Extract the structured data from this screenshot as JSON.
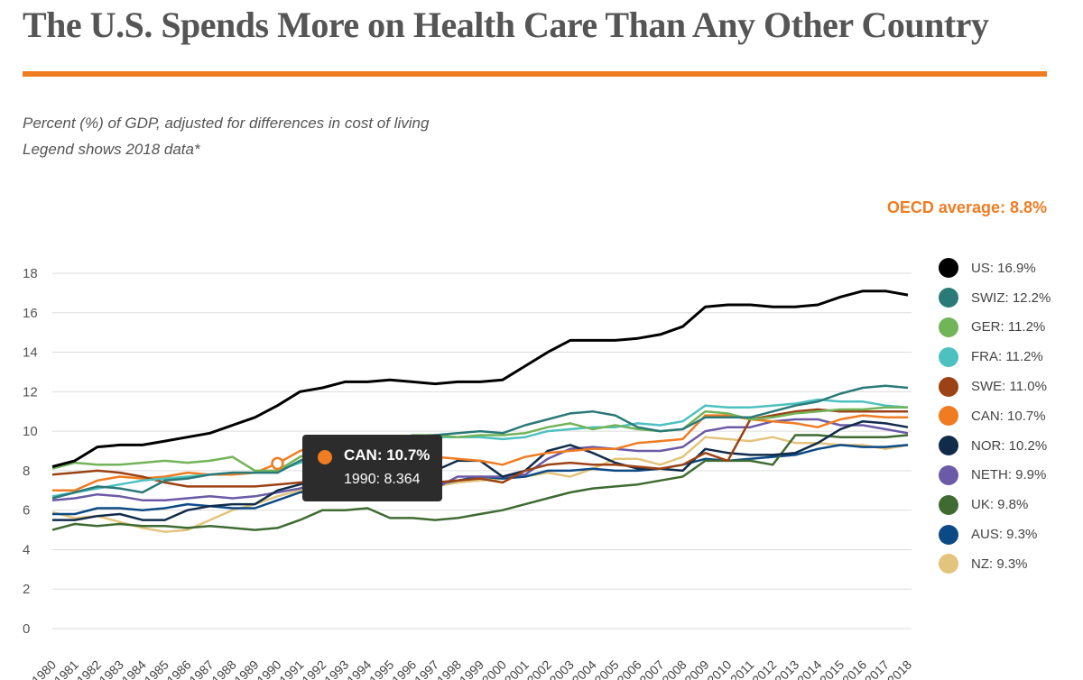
{
  "title": "The U.S. Spends More on Health Care Than Any Other Country",
  "subtitle": "Percent (%) of GDP, adjusted for differences in cost of living",
  "subtitle2": "Legend shows 2018 data*",
  "oecd_label": "OECD average: 8.8%",
  "tooltip": {
    "name": "CAN: 10.7%",
    "value": "1990: 8.364",
    "color": "#f07c22"
  },
  "colors": {
    "accent": "#f07c22",
    "title": "#555555",
    "tooltip_bg": "#2c2c2c"
  },
  "chart_data": {
    "type": "line",
    "ylim": [
      0,
      18
    ],
    "yticks": [
      0,
      2,
      4,
      6,
      8,
      10,
      12,
      14,
      16,
      18
    ],
    "x": [
      1980,
      1981,
      1982,
      1983,
      1984,
      1985,
      1986,
      1987,
      1988,
      1989,
      1990,
      1991,
      1992,
      1993,
      1994,
      1995,
      1996,
      1997,
      1998,
      1999,
      2000,
      2001,
      2002,
      2003,
      2004,
      2005,
      2006,
      2007,
      2008,
      2009,
      2010,
      2011,
      2012,
      2013,
      2014,
      2015,
      2016,
      2017,
      2018
    ],
    "highlight": {
      "series": "CAN",
      "x": 1990,
      "y": 8.364
    },
    "series": [
      {
        "name": "US",
        "legend": "US: 16.9%",
        "color": "#000000",
        "values": [
          8.2,
          8.5,
          9.2,
          9.3,
          9.3,
          9.5,
          9.7,
          9.9,
          10.3,
          10.7,
          11.3,
          12.0,
          12.2,
          12.5,
          12.5,
          12.6,
          12.5,
          12.4,
          12.5,
          12.5,
          12.6,
          13.3,
          14.0,
          14.6,
          14.6,
          14.6,
          14.7,
          14.9,
          15.3,
          16.3,
          16.4,
          16.4,
          16.3,
          16.3,
          16.4,
          16.8,
          17.1,
          17.1,
          16.9
        ]
      },
      {
        "name": "SWIZ",
        "legend": "SWIZ: 12.2%",
        "color": "#2a7a78",
        "values": [
          6.6,
          6.9,
          7.2,
          7.1,
          6.9,
          7.5,
          7.6,
          7.8,
          7.9,
          7.9,
          7.9,
          8.5,
          9.0,
          9.2,
          9.3,
          9.4,
          9.7,
          9.8,
          9.9,
          10.0,
          9.9,
          10.3,
          10.6,
          10.9,
          11.0,
          10.8,
          10.2,
          10.0,
          10.1,
          10.7,
          10.7,
          10.7,
          11.0,
          11.3,
          11.5,
          11.9,
          12.2,
          12.3,
          12.2
        ]
      },
      {
        "name": "GER",
        "legend": "GER: 11.2%",
        "color": "#72b458",
        "values": [
          8.1,
          8.4,
          8.3,
          8.3,
          8.4,
          8.5,
          8.4,
          8.5,
          8.7,
          8.0,
          8.0,
          8.7,
          9.1,
          9.2,
          9.3,
          9.5,
          9.8,
          9.8,
          9.7,
          9.8,
          9.8,
          9.9,
          10.2,
          10.4,
          10.1,
          10.3,
          10.1,
          10.0,
          10.1,
          11.0,
          10.9,
          10.6,
          10.7,
          10.9,
          11.0,
          11.1,
          11.1,
          11.2,
          11.2
        ]
      },
      {
        "name": "FRA",
        "legend": "FRA: 11.2%",
        "color": "#4dc1c0",
        "values": [
          6.7,
          6.9,
          7.1,
          7.3,
          7.5,
          7.6,
          7.7,
          7.8,
          7.9,
          7.9,
          8.0,
          8.4,
          8.7,
          9.1,
          9.3,
          9.5,
          9.6,
          9.7,
          9.7,
          9.7,
          9.6,
          9.7,
          10.0,
          10.1,
          10.2,
          10.2,
          10.4,
          10.3,
          10.5,
          11.3,
          11.2,
          11.2,
          11.3,
          11.4,
          11.6,
          11.5,
          11.5,
          11.3,
          11.2
        ]
      },
      {
        "name": "SWE",
        "legend": "SWE: 11.0%",
        "color": "#9c4214",
        "values": [
          7.8,
          7.9,
          8.0,
          7.9,
          7.7,
          7.4,
          7.2,
          7.2,
          7.2,
          7.2,
          7.3,
          7.4,
          7.5,
          7.6,
          7.4,
          7.4,
          7.6,
          7.4,
          7.5,
          7.6,
          7.4,
          8.0,
          8.3,
          8.4,
          8.3,
          8.3,
          8.2,
          8.1,
          8.3,
          8.9,
          8.5,
          10.6,
          10.8,
          11.0,
          11.1,
          11.0,
          11.0,
          11.0,
          11.0
        ]
      },
      {
        "name": "CAN",
        "legend": "CAN: 10.7%",
        "color": "#f07c22",
        "values": [
          7.0,
          7.0,
          7.5,
          7.7,
          7.6,
          7.7,
          7.9,
          7.8,
          7.8,
          7.9,
          8.364,
          9.0,
          9.4,
          9.3,
          9.1,
          9.0,
          8.8,
          8.7,
          8.6,
          8.5,
          8.3,
          8.7,
          8.9,
          9.0,
          9.1,
          9.1,
          9.4,
          9.5,
          9.6,
          10.8,
          10.8,
          10.6,
          10.5,
          10.4,
          10.2,
          10.6,
          10.8,
          10.7,
          10.7
        ]
      },
      {
        "name": "NOR",
        "legend": "NOR: 10.2%",
        "color": "#102c4a",
        "values": [
          5.5,
          5.5,
          5.7,
          5.8,
          5.5,
          5.5,
          6.0,
          6.2,
          6.3,
          6.3,
          7.0,
          7.3,
          7.6,
          7.6,
          7.5,
          7.5,
          7.6,
          8.0,
          8.5,
          8.5,
          7.7,
          8.0,
          9.0,
          9.3,
          8.9,
          8.4,
          8.1,
          8.1,
          8.0,
          9.1,
          8.9,
          8.8,
          8.8,
          8.9,
          9.4,
          10.1,
          10.5,
          10.4,
          10.2
        ]
      },
      {
        "name": "NETH",
        "legend": "NETH: 9.9%",
        "color": "#6b5aa6",
        "values": [
          6.5,
          6.6,
          6.8,
          6.7,
          6.5,
          6.5,
          6.6,
          6.7,
          6.6,
          6.7,
          6.9,
          7.1,
          7.5,
          7.6,
          7.5,
          7.5,
          7.3,
          7.1,
          7.7,
          7.7,
          7.7,
          7.8,
          8.6,
          9.1,
          9.2,
          9.1,
          9.0,
          9.0,
          9.2,
          10.0,
          10.2,
          10.2,
          10.5,
          10.6,
          10.6,
          10.3,
          10.3,
          10.1,
          9.9
        ]
      },
      {
        "name": "UK",
        "legend": "UK: 9.8%",
        "color": "#3f6b32",
        "values": [
          5.0,
          5.3,
          5.2,
          5.3,
          5.2,
          5.2,
          5.1,
          5.2,
          5.1,
          5.0,
          5.1,
          5.5,
          6.0,
          6.0,
          6.1,
          5.6,
          5.6,
          5.5,
          5.6,
          5.8,
          6.0,
          6.3,
          6.6,
          6.9,
          7.1,
          7.2,
          7.3,
          7.5,
          7.7,
          8.5,
          8.5,
          8.5,
          8.3,
          9.8,
          9.8,
          9.7,
          9.7,
          9.7,
          9.8
        ]
      },
      {
        "name": "AUS",
        "legend": "AUS: 9.3%",
        "color": "#0c4a86",
        "values": [
          5.8,
          5.8,
          6.1,
          6.1,
          6.0,
          6.1,
          6.3,
          6.2,
          6.1,
          6.1,
          6.5,
          6.9,
          7.1,
          7.2,
          7.3,
          7.3,
          7.3,
          7.3,
          7.5,
          7.7,
          7.6,
          7.7,
          8.0,
          8.0,
          8.1,
          8.0,
          8.0,
          8.1,
          8.3,
          8.6,
          8.5,
          8.6,
          8.7,
          8.8,
          9.1,
          9.3,
          9.2,
          9.2,
          9.3
        ]
      },
      {
        "name": "NZ",
        "legend": "NZ: 9.3%",
        "color": "#e3c47c",
        "values": [
          5.9,
          5.6,
          5.7,
          5.4,
          5.1,
          4.9,
          5.0,
          5.5,
          6.0,
          6.3,
          6.7,
          7.0,
          7.3,
          7.2,
          7.1,
          7.2,
          7.2,
          7.2,
          7.4,
          7.5,
          7.6,
          7.7,
          7.9,
          7.7,
          8.1,
          8.6,
          8.6,
          8.3,
          8.7,
          9.7,
          9.6,
          9.5,
          9.7,
          9.4,
          9.4,
          9.3,
          9.3,
          9.1,
          9.3
        ]
      }
    ]
  }
}
